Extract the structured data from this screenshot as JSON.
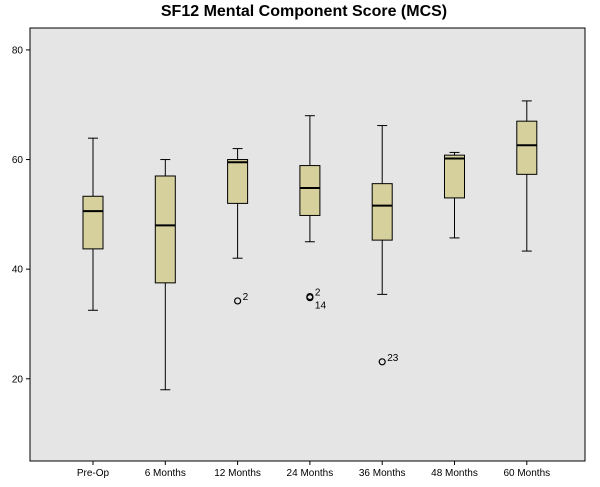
{
  "chart_data": {
    "type": "box",
    "title": "SF12 Mental Component Score (MCS)",
    "xlabel": "",
    "ylabel": "",
    "ylim": [
      5,
      84
    ],
    "yticks": [
      20,
      40,
      60,
      80
    ],
    "grid": false,
    "colors": {
      "plot_bg": "#e5e5e5",
      "box_fill": "#d6d09c",
      "stroke": "#000000"
    },
    "categories": [
      "Pre-Op",
      "6 Months",
      "12 Months",
      "24 Months",
      "36 Months",
      "48 Months",
      "60 Months"
    ],
    "boxes": [
      {
        "category": "Pre-Op",
        "min": 32.5,
        "q1": 43.7,
        "median": 50.6,
        "q3": 53.3,
        "max": 63.9,
        "outliers": []
      },
      {
        "category": "6 Months",
        "min": 18.0,
        "q1": 37.5,
        "median": 48.0,
        "q3": 57.0,
        "max": 60.0,
        "outliers": []
      },
      {
        "category": "12 Months",
        "min": 42.0,
        "q1": 52.0,
        "median": 59.5,
        "q3": 60.0,
        "max": 62.0,
        "outliers": [
          {
            "value": 34.2,
            "label": "2"
          }
        ]
      },
      {
        "category": "24 Months",
        "min": 45.0,
        "q1": 49.8,
        "median": 54.8,
        "q3": 58.9,
        "max": 68.0,
        "outliers": [
          {
            "value": 35.0,
            "label": "2"
          },
          {
            "value": 34.8,
            "label": "14"
          }
        ]
      },
      {
        "category": "36 Months",
        "min": 35.4,
        "q1": 45.3,
        "median": 51.6,
        "q3": 55.6,
        "max": 66.2,
        "outliers": [
          {
            "value": 23.1,
            "label": "23"
          }
        ]
      },
      {
        "category": "48 Months",
        "min": 45.7,
        "q1": 53.0,
        "median": 60.2,
        "q3": 60.8,
        "max": 61.3,
        "outliers": []
      },
      {
        "category": "60 Months",
        "min": 43.3,
        "q1": 57.3,
        "median": 62.6,
        "q3": 67.0,
        "max": 70.7,
        "outliers": []
      }
    ]
  }
}
